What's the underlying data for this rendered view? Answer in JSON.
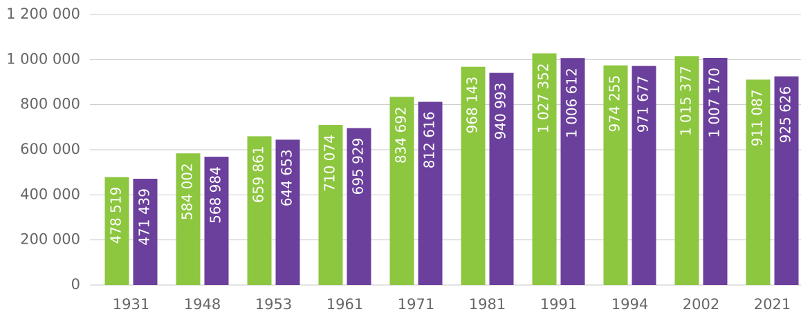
{
  "chart_data": {
    "type": "bar",
    "categories": [
      "1931",
      "1948",
      "1953",
      "1961",
      "1971",
      "1981",
      "1991",
      "1994",
      "2002",
      "2021"
    ],
    "series": [
      {
        "color": "#8dc63f",
        "values": [
          478519,
          584002,
          659861,
          710074,
          834692,
          968143,
          1027352,
          974255,
          1015377,
          911087
        ],
        "value_labels": [
          "478 519",
          "584 002",
          "659 861",
          "710 074",
          "834 692",
          "968 143",
          "1 027 352",
          "974 255",
          "1 015 377",
          "911 087"
        ]
      },
      {
        "color": "#6b3f9c",
        "values": [
          471439,
          568984,
          644653,
          695929,
          812616,
          940993,
          1006612,
          971677,
          1007170,
          925626
        ],
        "value_labels": [
          "471 439",
          "568 984",
          "644 653",
          "695 929",
          "812 616",
          "940 993",
          "1 006 612",
          "971 677",
          "1 007 170",
          "925 626"
        ]
      }
    ],
    "ylim": [
      0,
      1200000
    ],
    "yticks": [
      0,
      {
        "value": 200000,
        "label": "200 000"
      },
      {
        "value": 400000,
        "label": "400 000"
      },
      {
        "value": 600000,
        "label": "600 000"
      },
      {
        "value": 800000,
        "label": "800 000"
      },
      {
        "value": 1000000,
        "label": "1 000 000"
      },
      {
        "value": 1200000,
        "label": "1 200 000"
      }
    ],
    "grid": true
  }
}
